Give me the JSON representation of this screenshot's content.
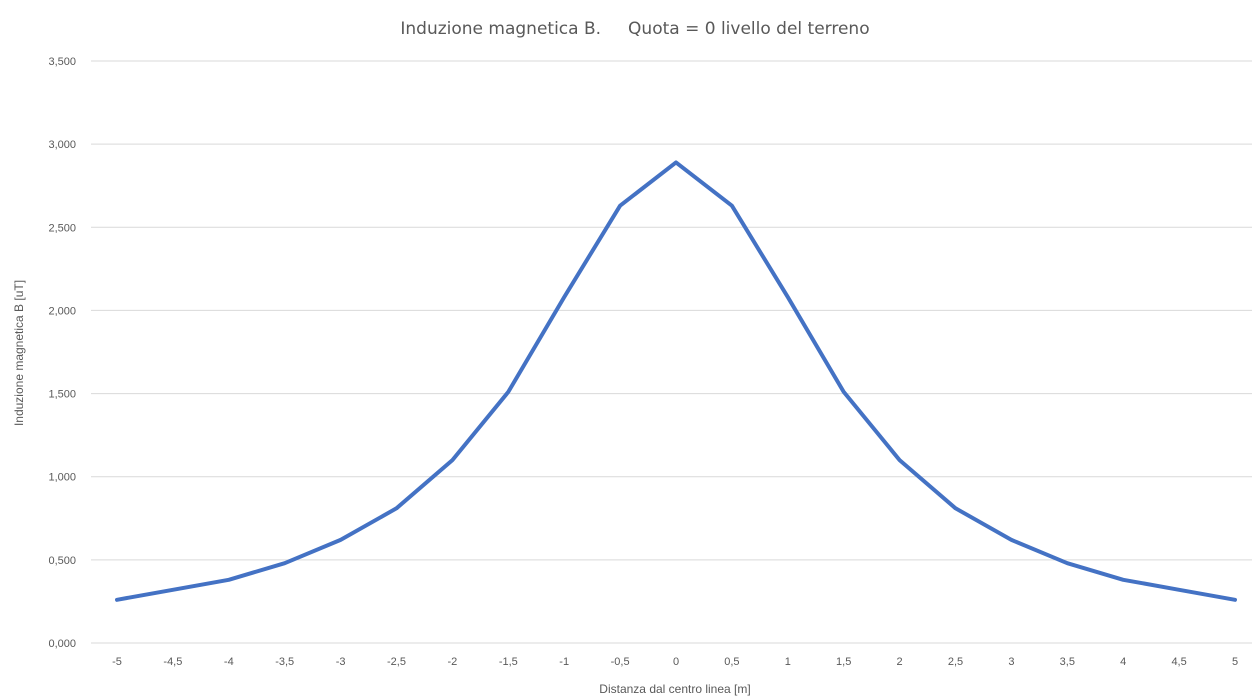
{
  "chart_data": {
    "type": "line",
    "title": "Induzione magnetica B.     Quota = 0 livello del terreno",
    "xlabel": "Distanza dal centro linea [m]",
    "ylabel": "Induzione magnetica B [uT]",
    "x": [
      -5,
      -4.5,
      -4,
      -3.5,
      -3,
      -2.5,
      -2,
      -1.5,
      -1,
      -0.5,
      0,
      0.5,
      1,
      1.5,
      2,
      2.5,
      3,
      3.5,
      4,
      4.5,
      5
    ],
    "x_tick_labels": [
      "-5",
      "-4,5",
      "-4",
      "-3,5",
      "-3",
      "-2,5",
      "-2",
      "-1,5",
      "-1",
      "-0,5",
      "0",
      "0,5",
      "1",
      "1,5",
      "2",
      "2,5",
      "3",
      "3,5",
      "4",
      "4,5",
      "5"
    ],
    "y_ticks": [
      0,
      0.5,
      1,
      1.5,
      2,
      2.5,
      3,
      3.5
    ],
    "y_tick_labels": [
      "0,000",
      "0,500",
      "1,000",
      "1,500",
      "2,000",
      "2,500",
      "3,000",
      "3,500"
    ],
    "ylim": [
      0,
      3.5
    ],
    "grid": true,
    "legend": "none",
    "series": [
      {
        "color": "#4472c4",
        "values": [
          0.26,
          0.32,
          0.38,
          0.48,
          0.62,
          0.81,
          1.1,
          1.51,
          2.08,
          2.63,
          2.89,
          2.63,
          2.08,
          1.51,
          1.1,
          0.81,
          0.62,
          0.48,
          0.38,
          0.32,
          0.26
        ]
      }
    ]
  }
}
